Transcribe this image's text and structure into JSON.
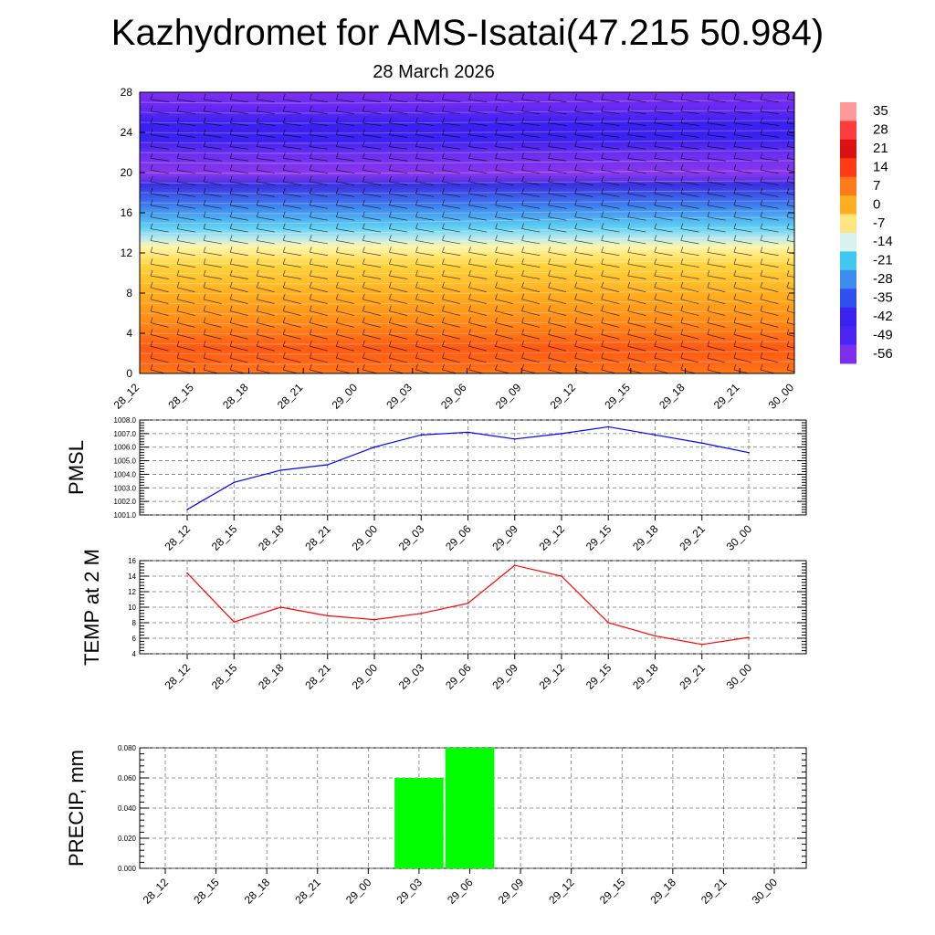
{
  "header": {
    "title": "Kazhydromet for AMS-Isatai(47.215 50.984)",
    "subtitle": "28 March 2026"
  },
  "colors": {
    "pmsl_line": "#0000ff",
    "temp_line": "#ff0000",
    "precip_bar": "#00ff00"
  },
  "chart_data": [
    {
      "type": "heatmap",
      "name": "temperature-cross-section",
      "x": [
        "28_12",
        "28_15",
        "28_18",
        "28_21",
        "29_00",
        "29_03",
        "29_06",
        "29_09",
        "29_12",
        "29_15",
        "29_18",
        "29_21",
        "30_00"
      ],
      "y_ticks": [
        0,
        4,
        8,
        12,
        16,
        20,
        24,
        28
      ],
      "ylim": [
        0,
        28
      ],
      "colorbar_labels": [
        "35",
        "28",
        "21",
        "14",
        "7",
        "0",
        "-7",
        "-14",
        "-21",
        "-28",
        "-35",
        "-42",
        "-49",
        "-56"
      ],
      "overlay": "wind barbs"
    },
    {
      "type": "line",
      "ylabel": "PMSL",
      "x": [
        "28_12",
        "28_15",
        "28_18",
        "28_21",
        "29_00",
        "29_03",
        "29_06",
        "29_09",
        "29_12",
        "29_15",
        "29_18",
        "29_21",
        "30_00"
      ],
      "values": [
        1001.4,
        1003.4,
        1004.3,
        1004.7,
        1006.0,
        1006.9,
        1007.1,
        1006.6,
        1007.0,
        1007.5,
        1006.9,
        1006.3,
        1005.6
      ],
      "ylim": [
        1001.0,
        1008.0
      ],
      "y_ticks": [
        "1001.0",
        "1002.0",
        "1003.0",
        "1004.0",
        "1005.0",
        "1006.0",
        "1007.0",
        "1008.0"
      ]
    },
    {
      "type": "line",
      "ylabel": "TEMP at 2 M",
      "x": [
        "28_12",
        "28_15",
        "28_18",
        "28_21",
        "29_00",
        "29_03",
        "29_06",
        "29_09",
        "29_12",
        "29_15",
        "29_18",
        "29_21",
        "30_00"
      ],
      "values": [
        14.4,
        8.1,
        10.0,
        8.9,
        8.4,
        9.2,
        10.5,
        15.4,
        14.0,
        8.0,
        6.3,
        5.2,
        6.1
      ],
      "ylim": [
        4,
        16
      ],
      "y_ticks": [
        "4",
        "6",
        "8",
        "10",
        "12",
        "14",
        "16"
      ]
    },
    {
      "type": "bar",
      "ylabel": "PRECIP, mm",
      "x": [
        "28_12",
        "28_15",
        "28_18",
        "28_21",
        "29_00",
        "29_03",
        "29_06",
        "29_09",
        "29_12",
        "29_15",
        "29_18",
        "29_21",
        "30_00"
      ],
      "values": [
        0,
        0,
        0,
        0,
        0,
        0.06,
        0.08,
        0,
        0,
        0,
        0,
        0,
        0
      ],
      "ylim": [
        0,
        0.08
      ],
      "y_ticks": [
        "0.000",
        "0.020",
        "0.040",
        "0.060",
        "0.080"
      ]
    }
  ]
}
